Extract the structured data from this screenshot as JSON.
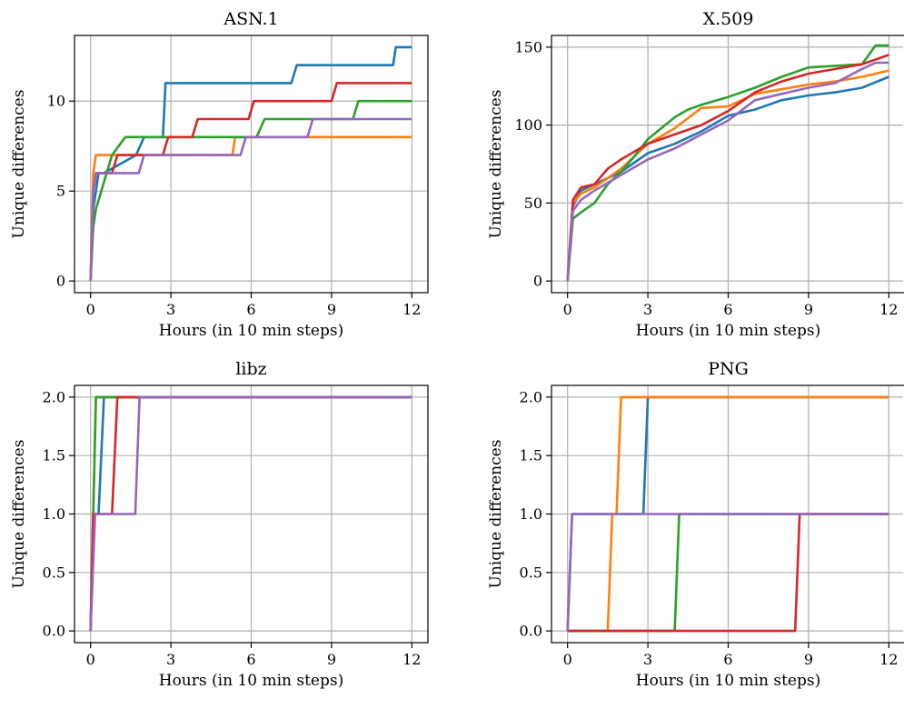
{
  "colors": {
    "blue": "#1f77b4",
    "orange": "#ff7f0e",
    "green": "#2ca02c",
    "red": "#d62728",
    "purple": "#9467bd",
    "grid": "#b0b0b0"
  },
  "chart_data": [
    {
      "type": "line",
      "title": "ASN.1",
      "xlabel": "Hours (in 10 min steps)",
      "ylabel": "Unique differences",
      "xlim": [
        -0.6,
        12.6
      ],
      "ylim": [
        -0.65,
        13.65
      ],
      "xticks": [
        0,
        3,
        6,
        9,
        12
      ],
      "xtick_labels": [
        "0",
        "3",
        "6",
        "9",
        "12"
      ],
      "yticks": [
        0,
        5,
        10
      ],
      "ytick_labels": [
        "0",
        "5",
        "10"
      ],
      "grid": true,
      "series": [
        {
          "color": "blue",
          "x": [
            0,
            0.1,
            0.2,
            0.3,
            0.5,
            1.7,
            2.0,
            2.7,
            2.8,
            7.5,
            7.7,
            11.3,
            11.4,
            12
          ],
          "y": [
            0,
            4,
            5,
            6,
            6,
            7,
            8,
            8,
            11,
            11,
            12,
            12,
            13,
            13
          ]
        },
        {
          "color": "orange",
          "x": [
            0,
            0.1,
            0.2,
            5.3,
            5.4,
            12
          ],
          "y": [
            0,
            6,
            7,
            7,
            8,
            8
          ]
        },
        {
          "color": "green",
          "x": [
            0,
            0.1,
            0.2,
            0.4,
            0.6,
            0.8,
            1.3,
            6.2,
            6.5,
            9.8,
            10.0,
            12
          ],
          "y": [
            0,
            3,
            4,
            5,
            6,
            7,
            8,
            8,
            9,
            9,
            10,
            10
          ]
        },
        {
          "color": "red",
          "x": [
            0,
            0.1,
            0.2,
            0.8,
            1.0,
            2.7,
            2.9,
            3.8,
            4.0,
            5.9,
            6.1,
            9.0,
            9.2,
            12
          ],
          "y": [
            0,
            5,
            6,
            6,
            7,
            7,
            8,
            8,
            9,
            9,
            10,
            10,
            11,
            11
          ]
        },
        {
          "color": "purple",
          "x": [
            0,
            0.1,
            0.2,
            1.8,
            2.0,
            5.6,
            5.8,
            8.1,
            8.3,
            12
          ],
          "y": [
            0,
            5,
            6,
            6,
            7,
            7,
            8,
            8,
            9,
            9
          ]
        }
      ]
    },
    {
      "type": "line",
      "title": "X.509",
      "xlabel": "Hours (in 10 min steps)",
      "ylabel": "Unique differences",
      "xlim": [
        -0.6,
        12.6
      ],
      "ylim": [
        -7.5,
        157.5
      ],
      "xticks": [
        0,
        3,
        6,
        9,
        12
      ],
      "xtick_labels": [
        "0",
        "3",
        "6",
        "9",
        "12"
      ],
      "yticks": [
        0,
        50,
        100,
        150
      ],
      "ytick_labels": [
        "0",
        "50",
        "100",
        "150"
      ],
      "grid": true,
      "series": [
        {
          "color": "blue",
          "x": [
            0,
            0.2,
            0.5,
            1.0,
            2.0,
            3.0,
            4.0,
            5.0,
            6.0,
            7.0,
            8.0,
            9.0,
            10.0,
            11.0,
            12.0
          ],
          "y": [
            0,
            48,
            58,
            62,
            70,
            82,
            88,
            96,
            106,
            110,
            116,
            119,
            121,
            124,
            131
          ]
        },
        {
          "color": "orange",
          "x": [
            0,
            0.2,
            0.5,
            1.0,
            2.0,
            3.0,
            4.0,
            5.0,
            6.0,
            7.0,
            8.0,
            9.0,
            10.0,
            11.0,
            12.0
          ],
          "y": [
            0,
            50,
            56,
            60,
            72,
            88,
            98,
            111,
            112,
            120,
            123,
            126,
            128,
            131,
            135
          ]
        },
        {
          "color": "green",
          "x": [
            0,
            0.2,
            0.5,
            1.0,
            1.5,
            2.0,
            2.5,
            3.0,
            3.5,
            4.0,
            4.5,
            5.0,
            6.0,
            7.0,
            8.0,
            9.0,
            10.0,
            11.0,
            11.5,
            12.0
          ],
          "y": [
            0,
            40,
            44,
            50,
            62,
            70,
            80,
            91,
            98,
            105,
            110,
            113,
            118,
            124,
            131,
            137,
            138,
            139,
            151,
            151
          ]
        },
        {
          "color": "red",
          "x": [
            0,
            0.2,
            0.5,
            1.0,
            1.5,
            2.0,
            2.5,
            3.0,
            4.0,
            5.0,
            6.0,
            7.0,
            8.0,
            9.0,
            10.0,
            11.0,
            12.0
          ],
          "y": [
            0,
            52,
            60,
            62,
            72,
            78,
            83,
            88,
            94,
            100,
            109,
            121,
            128,
            133,
            136,
            139,
            145
          ]
        },
        {
          "color": "purple",
          "x": [
            0,
            0.2,
            0.5,
            1.0,
            1.5,
            2.0,
            3.0,
            4.0,
            5.0,
            6.0,
            7.0,
            8.0,
            9.0,
            10.0,
            11.0,
            11.5,
            12.0
          ],
          "y": [
            0,
            45,
            52,
            58,
            63,
            68,
            78,
            85,
            94,
            103,
            116,
            120,
            124,
            127,
            136,
            140,
            140
          ]
        }
      ]
    },
    {
      "type": "line",
      "title": "libz",
      "xlabel": "Hours (in 10 min steps)",
      "ylabel": "Unique differences",
      "xlim": [
        -0.6,
        12.6
      ],
      "ylim": [
        -0.1,
        2.1
      ],
      "xticks": [
        0,
        3,
        6,
        9,
        12
      ],
      "xtick_labels": [
        "0",
        "3",
        "6",
        "9",
        "12"
      ],
      "yticks": [
        0,
        0.5,
        1.0,
        1.5,
        2.0
      ],
      "ytick_labels": [
        "0.0",
        "0.5",
        "1.0",
        "1.5",
        "2.0"
      ],
      "grid": true,
      "series": [
        {
          "color": "blue",
          "x": [
            0,
            0.1,
            0.3,
            0.5,
            12
          ],
          "y": [
            0,
            1,
            1,
            2,
            2
          ]
        },
        {
          "color": "orange",
          "x": [
            0,
            0.1,
            0.2,
            12
          ],
          "y": [
            0,
            1,
            2,
            2
          ]
        },
        {
          "color": "green",
          "x": [
            0,
            0.1,
            0.2,
            12
          ],
          "y": [
            0,
            1,
            2,
            2
          ]
        },
        {
          "color": "red",
          "x": [
            0,
            0.1,
            0.8,
            1.0,
            12
          ],
          "y": [
            0,
            1,
            1,
            2,
            2
          ]
        },
        {
          "color": "purple",
          "x": [
            0,
            0.17,
            1.67,
            1.83,
            12
          ],
          "y": [
            0,
            1,
            1,
            2,
            2
          ]
        }
      ]
    },
    {
      "type": "line",
      "title": "PNG",
      "xlabel": "Hours (in 10 min steps)",
      "ylabel": "Unique differences",
      "xlim": [
        -0.6,
        12.6
      ],
      "ylim": [
        -0.1,
        2.1
      ],
      "xticks": [
        0,
        3,
        6,
        9,
        12
      ],
      "xtick_labels": [
        "0",
        "3",
        "6",
        "9",
        "12"
      ],
      "yticks": [
        0,
        0.5,
        1.0,
        1.5,
        2.0
      ],
      "ytick_labels": [
        "0.0",
        "0.5",
        "1.0",
        "1.5",
        "2.0"
      ],
      "grid": true,
      "series": [
        {
          "color": "blue",
          "x": [
            0,
            0.17,
            2.83,
            3.0,
            12
          ],
          "y": [
            0,
            1,
            1,
            2,
            2
          ]
        },
        {
          "color": "orange",
          "x": [
            0,
            1.5,
            1.67,
            1.83,
            2.0,
            12
          ],
          "y": [
            0,
            0,
            1,
            1,
            2,
            2
          ]
        },
        {
          "color": "green",
          "x": [
            0,
            4.0,
            4.17,
            12
          ],
          "y": [
            0,
            0,
            1,
            1
          ]
        },
        {
          "color": "red",
          "x": [
            0,
            8.5,
            8.67,
            12
          ],
          "y": [
            0,
            0,
            1,
            1
          ]
        },
        {
          "color": "purple",
          "x": [
            0,
            0.17,
            12
          ],
          "y": [
            0,
            1,
            1
          ]
        }
      ]
    }
  ]
}
